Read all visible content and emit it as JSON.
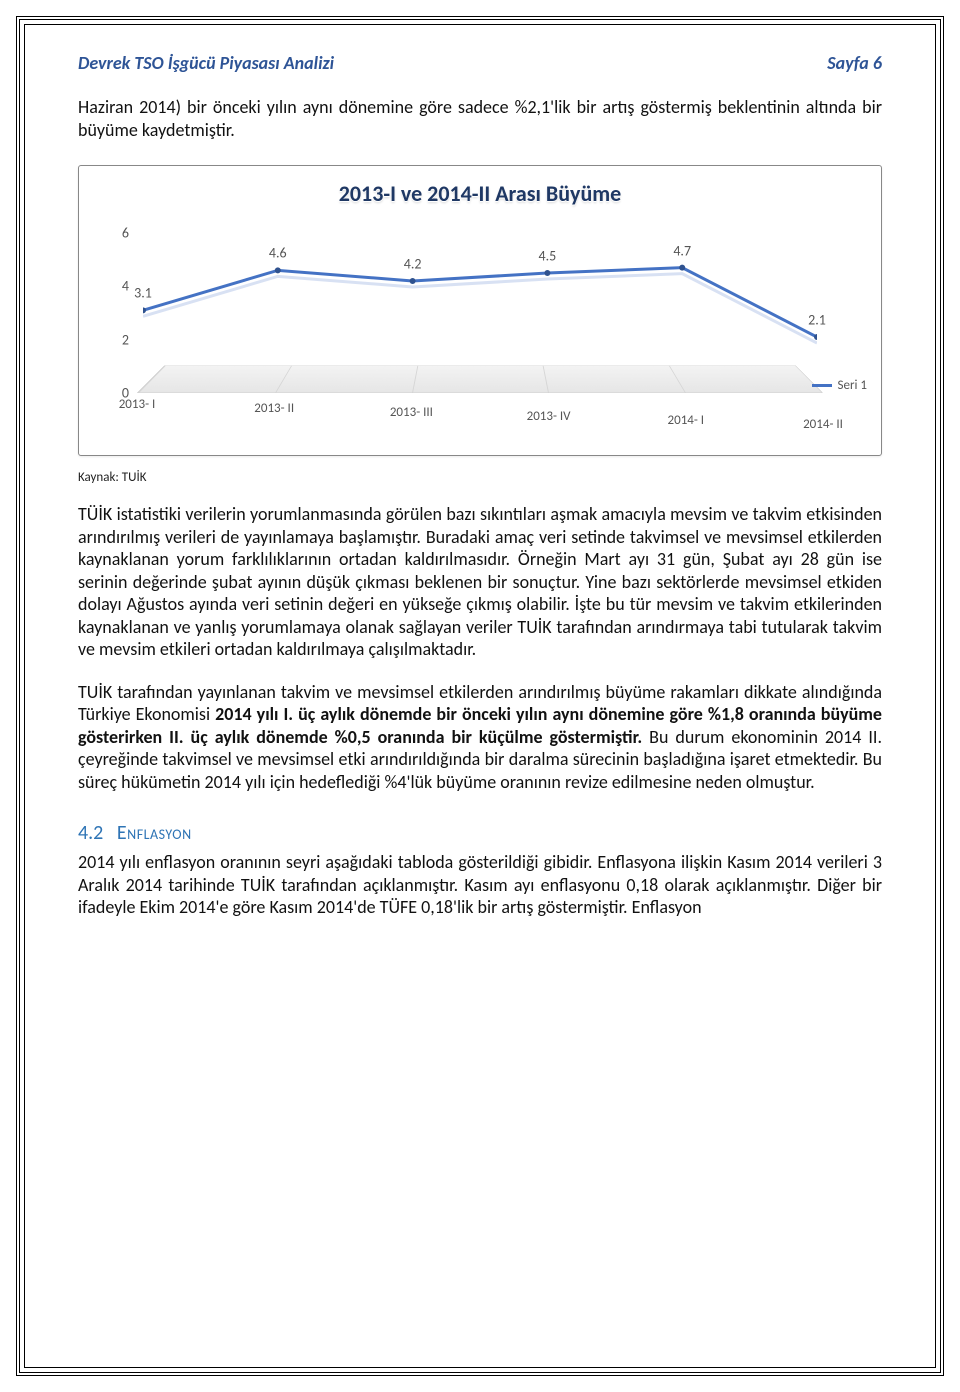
{
  "header": {
    "left": "Devrek TSO İşgücü Piyasası Analizi",
    "right": "Sayfa 6"
  },
  "intro": "Haziran 2014) bir önceki yılın aynı dönemine göre sadece %2,1'lik bir artış göstermiş beklentinin altında bir büyüme kaydetmiştir.",
  "chart": {
    "type": "line",
    "title": "2013-I ve 2014-II Arası Büyüme",
    "title_color": "#1f3864",
    "title_fontsize": 22,
    "categories": [
      "2013- I",
      "2013- II",
      "2013- III",
      "2013- IV",
      "2014- I",
      "2014- II"
    ],
    "values": [
      3.1,
      4.6,
      4.2,
      4.5,
      4.7,
      2.1
    ],
    "ylim": [
      0,
      6
    ],
    "ytick_step": 2,
    "y_ticks": [
      0,
      2,
      4,
      6
    ],
    "line_color": "#4472c4",
    "line_width": 3,
    "marker_color": "#2f528f",
    "marker_radius": 3,
    "floor_fill": "#ececec",
    "grid_color": "#d6d6d6",
    "legend_label": "Seri 1",
    "label_fontsize": 14,
    "axis_label_color": "#595959",
    "background_color": "#ffffff"
  },
  "source_line": "Kaynak: TUİK",
  "paragraph1": "TÜİK istatistiki verilerin yorumlanmasında görülen bazı sıkıntıları aşmak amacıyla mevsim ve takvim etkisinden arındırılmış verileri de yayınlamaya başlamıştır. Buradaki amaç veri setinde takvimsel ve mevsimsel etkilerden kaynaklanan yorum farklılıklarının ortadan kaldırılmasıdır. Örneğin Mart ayı 31 gün, Şubat ayı 28 gün ise serinin değerinde şubat ayının düşük çıkması beklenen bir sonuçtur. Yine bazı sektörlerde mevsimsel etkiden dolayı Ağustos ayında veri setinin değeri en yükseğe çıkmış olabilir. İşte bu tür mevsim ve takvim etkilerinden kaynaklanan ve yanlış yorumlamaya olanak sağlayan veriler TUİK tarafından arındırmaya tabi tutularak takvim ve mevsim etkileri ortadan kaldırılmaya çalışılmaktadır.",
  "paragraph2_parts": {
    "p1": "TUİK tarafından yayınlanan takvim ve mevsimsel etkilerden arındırılmış büyüme rakamları dikkate alındığında Türkiye Ekonomisi ",
    "b1": "2014 yılı I. üç aylık dönemde bir önceki yılın aynı dönemine göre %1,8 oranında büyüme gösterirken II. üç aylık dönemde %0,5 oranında bir küçülme göstermiştir.",
    "p2": " Bu durum ekonominin 2014 II. çeyreğinde takvimsel ve mevsimsel etki arındırıldığında bir daralma sürecinin başladığına işaret etmektedir. Bu süreç hükümetin 2014 yılı için hedeflediği %4'lük büyüme oranının revize edilmesine neden olmuştur."
  },
  "section": {
    "number": "4.2",
    "title": "Enflasyon"
  },
  "paragraph3": "2014 yılı enflasyon oranının seyri aşağıdaki tabloda gösterildiği gibidir. Enflasyona ilişkin Kasım 2014 verileri 3 Aralık 2014 tarihinde TUİK tarafından açıklanmıştır. Kasım ayı enflasyonu 0,18 olarak açıklanmıştır. Diğer bir ifadeyle Ekim 2014'e göre Kasım 2014'de TÜFE 0,18'lik bir artış göstermiştir. Enflasyon"
}
